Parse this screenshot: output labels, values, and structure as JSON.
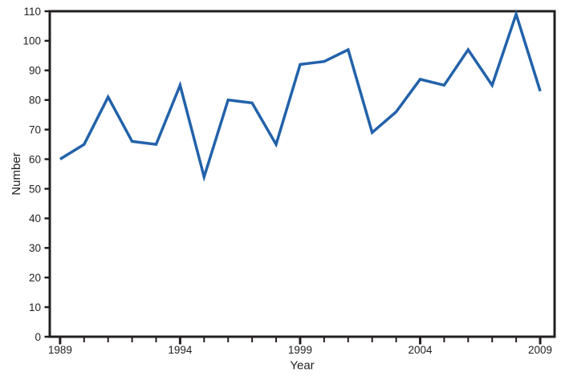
{
  "figure": {
    "background_color": "#ffffff"
  },
  "chart_data": {
    "type": "line",
    "title": "",
    "xlabel": "Year",
    "ylabel": "Number",
    "x": [
      1989,
      1990,
      1991,
      1992,
      1993,
      1994,
      1995,
      1996,
      1997,
      1998,
      1999,
      2000,
      2001,
      2002,
      2003,
      2004,
      2005,
      2006,
      2007,
      2008,
      2009
    ],
    "series": [
      {
        "name": "Number",
        "values": [
          60,
          65,
          81,
          66,
          65,
          85,
          54,
          80,
          79,
          65,
          92,
          93,
          97,
          69,
          76,
          87,
          85,
          97,
          85,
          109,
          83
        ]
      }
    ],
    "x_major_ticks": [
      1989,
      1994,
      1999,
      2004,
      2009
    ],
    "x_tick_labels": [
      "1989",
      "1994",
      "1999",
      "2004",
      "2009"
    ],
    "y_ticks": [
      0,
      10,
      20,
      30,
      40,
      50,
      60,
      70,
      80,
      90,
      100,
      110
    ],
    "xlim": [
      1988.57,
      2009.6
    ],
    "ylim": [
      0,
      110
    ],
    "grid": false,
    "legend": null,
    "line_color": "#2262aa",
    "axis_color": "#231f20",
    "text_color": "#231f20"
  }
}
